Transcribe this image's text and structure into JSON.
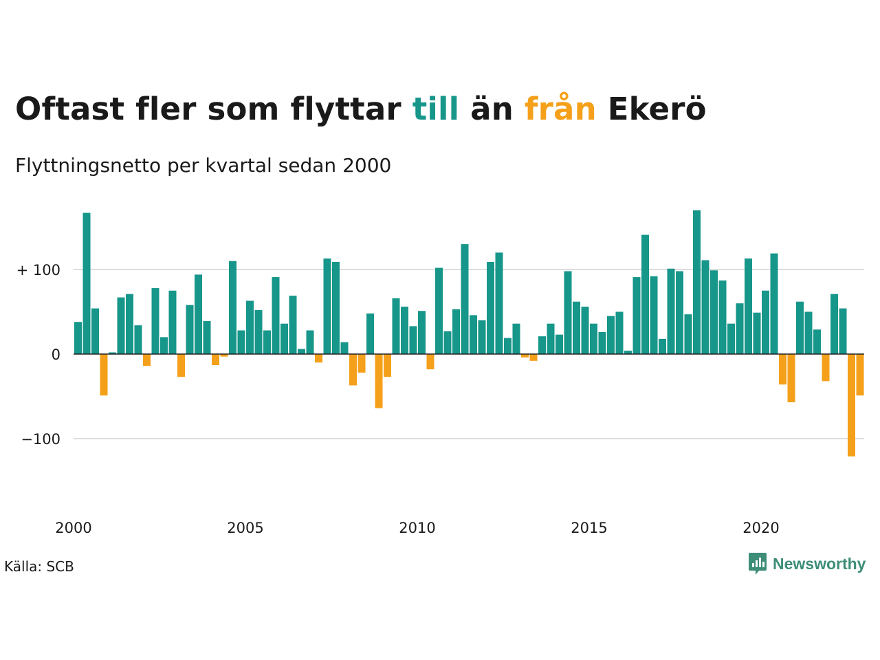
{
  "title": {
    "part1": "Oftast fler som flyttar ",
    "word_till": "till",
    "part2": " än ",
    "word_fran": "från",
    "part3": " Ekerö"
  },
  "subtitle": "Flyttningsnetto per kvartal sedan 2000",
  "source": "Källa: SCB",
  "logo": {
    "text": "Newsworthy",
    "icon": "chart-bubble-icon"
  },
  "colors": {
    "positive": "#17968a",
    "negative": "#f5a01a",
    "grid": "#dddddd",
    "zero_line": "#222222"
  },
  "chart_data": {
    "type": "bar",
    "x_start": "2000 Q1",
    "y_ticks": [
      {
        "value": 100,
        "label": "+ 100"
      },
      {
        "value": 0,
        "label": "0"
      },
      {
        "value": -100,
        "label": "−100"
      }
    ],
    "ylim": [
      -175,
      170
    ],
    "x_ticks": [
      "2000",
      "2005",
      "2010",
      "2015",
      "2020"
    ],
    "values": [
      38,
      167,
      54,
      -49,
      2,
      67,
      71,
      34,
      -14,
      78,
      20,
      75,
      -27,
      58,
      94,
      39,
      -13,
      -3,
      110,
      28,
      63,
      52,
      28,
      91,
      36,
      69,
      6,
      28,
      -10,
      113,
      109,
      14,
      -37,
      -22,
      48,
      -64,
      -27,
      66,
      56,
      33,
      51,
      -18,
      102,
      27,
      53,
      130,
      46,
      40,
      109,
      120,
      19,
      36,
      -4,
      -8,
      21,
      36,
      23,
      98,
      62,
      56,
      36,
      26,
      45,
      50,
      4,
      91,
      141,
      92,
      18,
      101,
      98,
      47,
      170,
      111,
      99,
      87,
      36,
      60,
      113,
      49,
      75,
      119,
      -36,
      -57,
      62,
      50,
      29,
      -32,
      71,
      54,
      -121,
      -49
    ]
  }
}
